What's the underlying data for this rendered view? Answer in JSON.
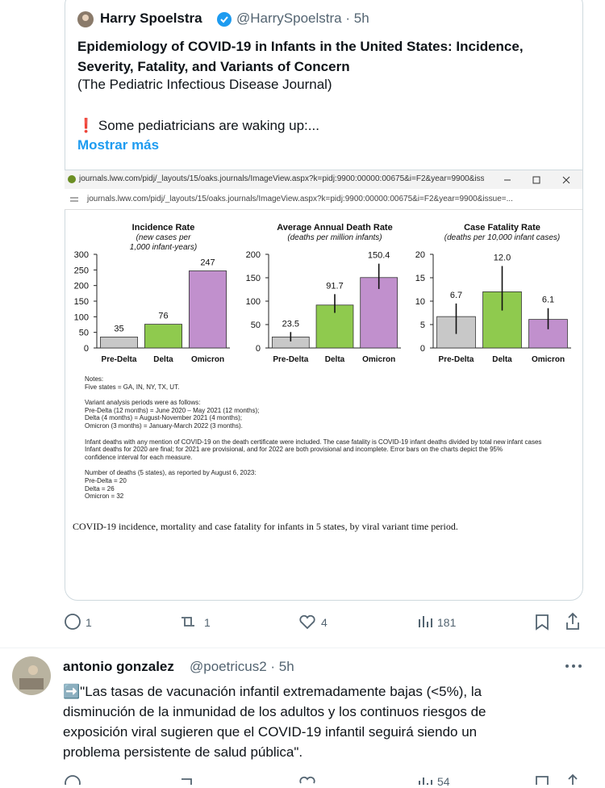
{
  "quoted_tweet": {
    "author_name": "Harry Spoelstra",
    "handle_time": "@HarrySpoelstra · 5h",
    "title_lines": [
      "Epidemiology of COVID-19 in Infants in the United States: Incidence,",
      "Severity, Fatality, and Variants of Concern"
    ],
    "journal": "(The Pediatric Infectious Disease Journal)",
    "text": "❗ Some pediatricians are waking up:...",
    "show_more": "Mostrar más",
    "window_url": "journals.lww.com/pidj/_layouts/15/oaks.journals/ImageView.aspx?k=pidj:9900:00000:00675&i=F2&year=9900&issue=...",
    "address_url": "journals.lww.com/pidj/_layouts/15/oaks.journals/ImageView.aspx?k=pidj:9900:00000:00675&i=F2&year=9900&issue=...",
    "stats": {
      "replies": 1,
      "retweets": 1,
      "likes": 4,
      "views": 181
    }
  },
  "chart_data": [
    {
      "type": "bar",
      "title": "Incidence Rate",
      "subtitle": [
        "(new cases per",
        "1,000 infant-years)"
      ],
      "categories": [
        "Pre-Delta",
        "Delta",
        "Omicron"
      ],
      "values": [
        35,
        76,
        247
      ],
      "colors": [
        "#c8c8c8",
        "#8fca4e",
        "#c190cd"
      ],
      "ylim": [
        0,
        300
      ],
      "yticks": [
        0,
        50,
        100,
        150,
        200,
        250,
        300
      ]
    },
    {
      "type": "bar",
      "title": "Average Annual Death Rate",
      "subtitle": [
        "(deaths per million infants)"
      ],
      "categories": [
        "Pre-Delta",
        "Delta",
        "Omicron"
      ],
      "values": [
        23.5,
        91.7,
        150.4
      ],
      "ci_low": [
        14,
        75,
        126
      ],
      "ci_high": [
        34,
        115,
        180
      ],
      "colors": [
        "#c8c8c8",
        "#8fca4e",
        "#c190cd"
      ],
      "ylim": [
        0,
        200
      ],
      "yticks": [
        0,
        50,
        100,
        150,
        200
      ]
    },
    {
      "type": "bar",
      "title": "Case Fatality Rate",
      "subtitle": [
        "(deaths per 10,000 infant cases)"
      ],
      "categories": [
        "Pre-Delta",
        "Delta",
        "Omicron"
      ],
      "values": [
        6.7,
        12,
        6.1
      ],
      "value_labels": [
        "6.7",
        "12.0",
        "6.1"
      ],
      "ci_low": [
        3,
        8,
        4
      ],
      "ci_high": [
        9.5,
        17.5,
        8.5
      ],
      "colors": [
        "#c8c8c8",
        "#8fca4e",
        "#c190cd"
      ],
      "ylim": [
        0,
        20
      ],
      "yticks": [
        0,
        5,
        10,
        15,
        20
      ]
    }
  ],
  "notes": [
    [
      "Notes:",
      "Five states = GA, IN, NY, TX, UT."
    ],
    [
      "Variant analysis periods were as follows:",
      "Pre-Delta (12 months) = June 2020 – May 2021 (12 months);",
      "Delta (4 months) = August-November 2021 (4 months);",
      "Omicron (3 months) = January-March 2022 (3 months)."
    ],
    [
      "Infant deaths with any mention of COVID-19 on the death certificate were included. The case fatality is COVID-19 infant deaths divided by total new infant cases",
      "Infant deaths for 2020 are final; for 2021 are provisional, and for 2022 are both provisional and incomplete.  Error bars on the charts depict the 95%",
      "confidence interval for each measure."
    ],
    [
      "Number of deaths (5 states), as reported by August 6, 2023:",
      "Pre-Delta = 20",
      "Delta = 26",
      "Omicron = 32"
    ]
  ],
  "caption": "COVID-19 incidence, mortality and case fatality for infants in 5 states, by viral variant time period.",
  "main_stats": {
    "replies": 1,
    "retweets": 1,
    "likes": 4,
    "views": 181
  },
  "reply": {
    "author_name": "antonio gonzalez",
    "handle_time": "@poetricus2 · 5h",
    "text_lines": [
      "➡️\"Las tasas de vacunación infantil extremadamente bajas (<5%), la",
      "disminución de la inmunidad de los adultos y los continuos riesgos de",
      "exposición viral sugieren que el COVID-19 infantil seguirá siendo un",
      "problema persistente de salud pública\"."
    ],
    "stats": {
      "views": 54
    }
  }
}
